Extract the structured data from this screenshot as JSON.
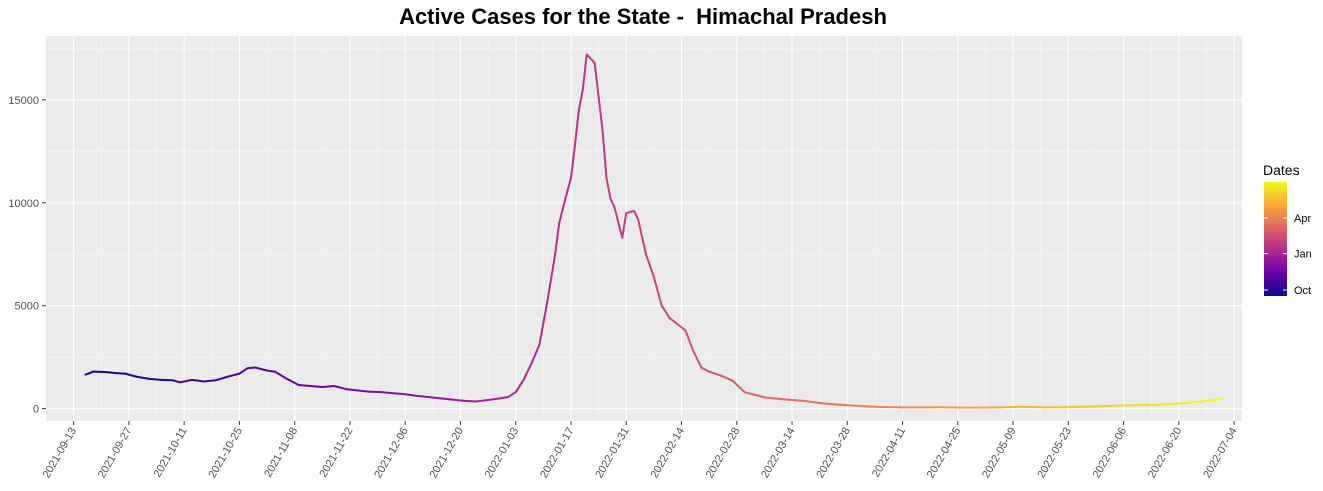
{
  "chart_data": {
    "type": "line",
    "title": "Active Cases for the State -  Himachal Pradesh",
    "xlabel": "",
    "ylabel": "",
    "ylim": [
      -600,
      18100
    ],
    "xlim": [
      "2021-09-06",
      "2022-07-06"
    ],
    "grid": true,
    "legend": {
      "title": "Dates",
      "placement": "right",
      "type": "colorbar",
      "palette": "plasma",
      "colors": [
        "#0D0887",
        "#6A00A8",
        "#B12A90",
        "#E16462",
        "#FCA636",
        "#F0F921"
      ],
      "labels": [
        "Oct",
        "Jan",
        "Apr"
      ],
      "label_dates": [
        "2021-10-01",
        "2022-01-01",
        "2022-04-01"
      ],
      "range": [
        "2021-09-16",
        "2022-07-01"
      ]
    },
    "x_ticks": [
      "2021-09-13",
      "2021-09-27",
      "2021-10-11",
      "2021-10-25",
      "2021-11-08",
      "2021-11-22",
      "2021-12-06",
      "2021-12-20",
      "2022-01-03",
      "2022-01-17",
      "2022-01-31",
      "2022-02-14",
      "2022-02-28",
      "2022-03-14",
      "2022-03-28",
      "2022-04-11",
      "2022-04-25",
      "2022-05-09",
      "2022-05-23",
      "2022-06-06",
      "2022-06-20",
      "2022-07-04"
    ],
    "y_ticks": [
      0,
      5000,
      10000,
      15000
    ],
    "y_tick_labels": [
      "0",
      "5000",
      "10000",
      "15000"
    ],
    "series": [
      {
        "x": [
          "2021-09-16",
          "2021-09-18",
          "2021-09-21",
          "2021-09-24",
          "2021-09-26",
          "2021-09-29",
          "2021-10-02",
          "2021-10-05",
          "2021-10-08",
          "2021-10-10",
          "2021-10-13",
          "2021-10-16",
          "2021-10-19",
          "2021-10-22",
          "2021-10-25",
          "2021-10-27",
          "2021-10-29",
          "2021-11-01",
          "2021-11-03",
          "2021-11-06",
          "2021-11-09",
          "2021-11-12",
          "2021-11-15",
          "2021-11-18",
          "2021-11-21",
          "2021-11-24",
          "2021-11-27",
          "2021-11-30",
          "2021-12-03",
          "2021-12-06",
          "2021-12-09",
          "2021-12-12",
          "2021-12-15",
          "2021-12-18",
          "2021-12-21",
          "2021-12-24",
          "2021-12-27",
          "2021-12-30",
          "2022-01-01",
          "2022-01-03",
          "2022-01-05",
          "2022-01-07",
          "2022-01-09",
          "2022-01-11",
          "2022-01-13",
          "2022-01-14",
          "2022-01-16",
          "2022-01-17",
          "2022-01-18",
          "2022-01-19",
          "2022-01-20",
          "2022-01-21",
          "2022-01-23",
          "2022-01-25",
          "2022-01-26",
          "2022-01-27",
          "2022-01-28",
          "2022-01-30",
          "2022-01-31",
          "2022-02-02",
          "2022-02-03",
          "2022-02-05",
          "2022-02-07",
          "2022-02-09",
          "2022-02-11",
          "2022-02-13",
          "2022-02-15",
          "2022-02-17",
          "2022-02-19",
          "2022-02-21",
          "2022-02-24",
          "2022-02-27",
          "2022-03-02",
          "2022-03-07",
          "2022-03-12",
          "2022-03-17",
          "2022-03-22",
          "2022-03-27",
          "2022-04-01",
          "2022-04-06",
          "2022-04-11",
          "2022-04-16",
          "2022-04-21",
          "2022-04-26",
          "2022-05-01",
          "2022-05-06",
          "2022-05-11",
          "2022-05-16",
          "2022-05-21",
          "2022-05-26",
          "2022-05-31",
          "2022-06-05",
          "2022-06-10",
          "2022-06-15",
          "2022-06-20",
          "2022-06-23",
          "2022-06-26",
          "2022-06-29",
          "2022-07-01"
        ],
        "values": [
          1650,
          1800,
          1780,
          1720,
          1700,
          1550,
          1450,
          1400,
          1380,
          1280,
          1400,
          1320,
          1380,
          1550,
          1700,
          1960,
          2000,
          1850,
          1800,
          1450,
          1150,
          1100,
          1050,
          1100,
          950,
          880,
          820,
          800,
          750,
          700,
          620,
          560,
          500,
          440,
          380,
          350,
          420,
          500,
          560,
          800,
          1400,
          2200,
          3100,
          5200,
          7500,
          9000,
          10500,
          11200,
          12800,
          14500,
          15500,
          17200,
          16800,
          13500,
          11200,
          10200,
          9800,
          8300,
          9500,
          9600,
          9200,
          7500,
          6400,
          5000,
          4400,
          4100,
          3800,
          2800,
          2000,
          1800,
          1600,
          1350,
          800,
          550,
          450,
          380,
          250,
          180,
          120,
          80,
          60,
          60,
          70,
          50,
          50,
          60,
          90,
          70,
          60,
          90,
          110,
          150,
          170,
          190,
          250,
          300,
          350,
          420,
          500
        ]
      }
    ]
  }
}
